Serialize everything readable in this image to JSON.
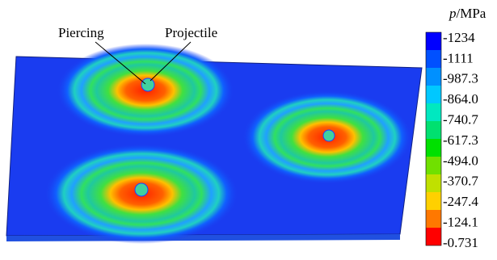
{
  "legend": {
    "title_var": "p",
    "title_unit": "/MPa",
    "labels": [
      "-1234",
      "-1111",
      "-987.3",
      "-864.0",
      "-740.7",
      "-617.3",
      "-494.0",
      "-370.7",
      "-247.4",
      "-124.1",
      "-0.731"
    ]
  },
  "annotations": {
    "piercing": "Piercing",
    "projectile": "Projectile"
  }
}
